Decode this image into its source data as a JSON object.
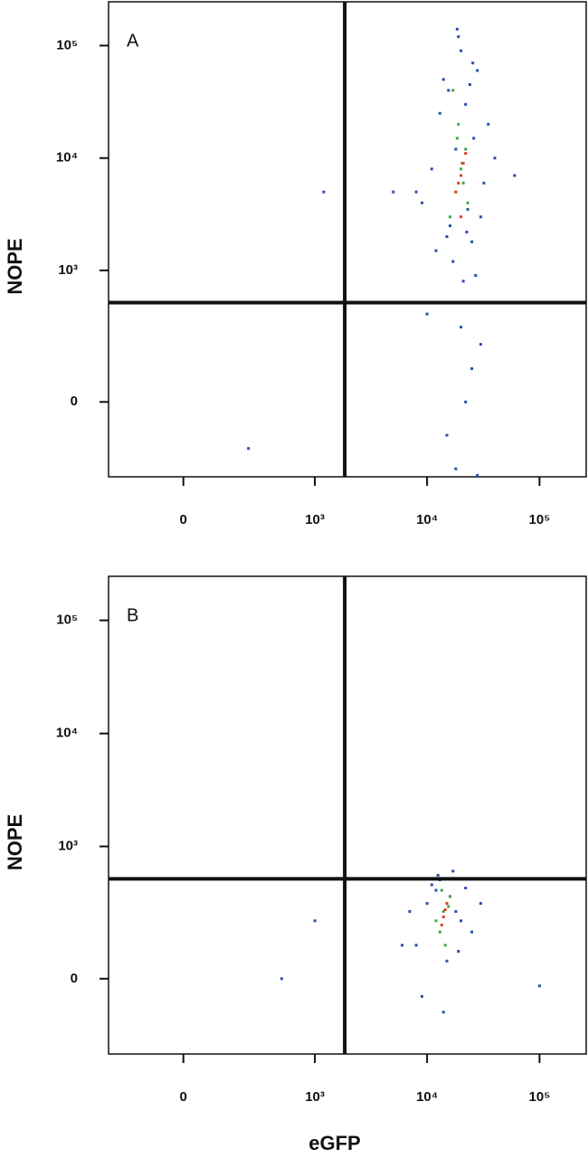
{
  "chart_data": [
    {
      "type": "scatter",
      "annotation": "A",
      "ylabel": "NOPE",
      "xscale": "biexponential",
      "yscale": "biexponential",
      "xlim": [
        -300,
        260000
      ],
      "ylim": [
        -300,
        245000
      ],
      "xticks": [
        0,
        {
          "value": 1000,
          "label": "10³"
        },
        {
          "value": 10000,
          "label": "10⁴"
        },
        {
          "value": 100000,
          "label": "10⁵"
        }
      ],
      "yticks": [
        0,
        {
          "value": 1000,
          "label": "10³"
        },
        {
          "value": 10000,
          "label": "10⁴"
        },
        {
          "value": 100000,
          "label": "10⁵"
        }
      ],
      "gate_x": 1850,
      "gate_y": 510,
      "series": [
        {
          "color": "#2a4fb0",
          "x": [
            12000,
            15000,
            25000,
            30000,
            9000,
            18000,
            22000,
            35000,
            14000,
            28000,
            11000,
            20000,
            26000,
            16000,
            32000,
            13000,
            24000,
            19000,
            8000,
            40000,
            17000,
            21000,
            27000,
            23000,
            15500,
            60000,
            5000,
            18500,
            25500,
            22500,
            20000,
            25000,
            15000,
            30000,
            18000,
            22000,
            10000,
            28000,
            1200,
            240
          ],
          "values": [
            1500,
            2000,
            1800,
            3000,
            4000,
            12000,
            30000,
            20000,
            50000,
            60000,
            8000,
            90000,
            15000,
            2500,
            6000,
            25000,
            45000,
            120000,
            5000,
            10000,
            1200,
            800,
            900,
            3500,
            40000,
            7000,
            5000,
            140000,
            70000,
            2200,
            300,
            100,
            -100,
            200,
            -250,
            0,
            400,
            -290,
            5000,
            -150
          ]
        },
        {
          "color": "#3aa84a",
          "x": [
            18000,
            20000,
            22000,
            16000,
            19000,
            21000,
            17000,
            23000,
            20500,
            18500
          ],
          "values": [
            5000,
            8000,
            12000,
            3000,
            20000,
            6000,
            40000,
            4000,
            9000,
            15000
          ]
        },
        {
          "color": "#e04020",
          "x": [
            19000,
            20000,
            21000,
            18000,
            20000,
            22000
          ],
          "values": [
            6000,
            7000,
            9000,
            5000,
            3000,
            11000
          ]
        }
      ]
    },
    {
      "type": "scatter",
      "annotation": "B",
      "ylabel": "NOPE",
      "xlabel": "eGFP",
      "xscale": "biexponential",
      "yscale": "biexponential",
      "xlim": [
        -300,
        260000
      ],
      "ylim": [
        -300,
        245000
      ],
      "xticks": [
        0,
        {
          "value": 1000,
          "label": "10³"
        },
        {
          "value": 10000,
          "label": "10⁴"
        },
        {
          "value": 100000,
          "label": "10⁵"
        }
      ],
      "yticks": [
        0,
        {
          "value": 1000,
          "label": "10³"
        },
        {
          "value": 10000,
          "label": "10⁴"
        },
        {
          "value": 100000,
          "label": "10⁵"
        }
      ],
      "gate_x": 1850,
      "gate_y": 510,
      "series": [
        {
          "color": "#2a4fb0",
          "x": [
            8000,
            10000,
            12000,
            15000,
            18000,
            20000,
            9000,
            11000,
            13000,
            16000,
            25000,
            30000,
            6000,
            14000,
            17000,
            100000,
            500,
            1000,
            12500,
            19000,
            22000,
            7000
          ],
          "values": [
            100,
            300,
            400,
            50,
            250,
            200,
            -50,
            450,
            500,
            350,
            150,
            300,
            100,
            -100,
            600,
            -20,
            0,
            200,
            550,
            80,
            420,
            250
          ]
        },
        {
          "color": "#3aa84a",
          "x": [
            12000,
            14000,
            15000,
            13000,
            16000,
            14500,
            13500,
            15500
          ],
          "values": [
            200,
            250,
            300,
            150,
            350,
            100,
            400,
            280
          ]
        },
        {
          "color": "#e04020",
          "x": [
            14000,
            14500,
            13500,
            15000
          ],
          "values": [
            220,
            260,
            180,
            300
          ]
        }
      ]
    }
  ]
}
